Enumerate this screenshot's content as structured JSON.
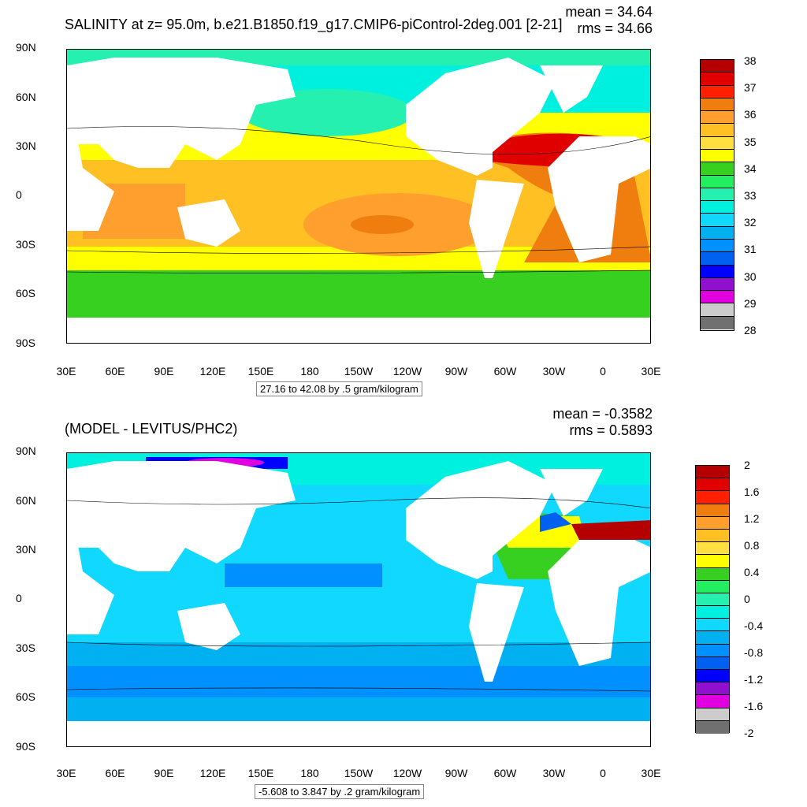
{
  "top": {
    "title": "SALINITY at z=  95.0m, b.e21.B1850.f19_g17.CMIP6-piControl-2deg.001 [2-21]",
    "mean": "mean = 34.64",
    "rms": "rms = 34.66",
    "range_text": "27.16 to 42.08 by .5 gram/kilogram",
    "colorbar_labels": [
      "38",
      "37",
      "36",
      "35",
      "34",
      "33",
      "32",
      "31",
      "30",
      "29",
      "28"
    ],
    "colorbar_colors": [
      "#b40000",
      "#e00000",
      "#ff2000",
      "#ef7e0e",
      "#ff9f2e",
      "#ffc024",
      "#ffe040",
      "#ffff00",
      "#38d020",
      "#22ee60",
      "#26f0b0",
      "#00f0e0",
      "#10d8ff",
      "#00b0f0",
      "#0090ff",
      "#0060f0",
      "#0000ff",
      "#9010d0",
      "#e000e0",
      "#cccccc",
      "#707070"
    ]
  },
  "bottom": {
    "title": "(MODEL - LEVITUS/PHC2)",
    "mean": "mean = -0.3582",
    "rms": "rms = 0.5893",
    "range_text": "-5.608 to 3.847 by .2 gram/kilogram",
    "colorbar_labels": [
      "2",
      "1.6",
      "1.2",
      "0.8",
      "0.4",
      "0",
      "-0.4",
      "-0.8",
      "-1.2",
      "-1.6",
      "-2"
    ],
    "colorbar_colors": [
      "#b40000",
      "#e00000",
      "#ff2000",
      "#ef7e0e",
      "#ff9f2e",
      "#ffc024",
      "#ffe040",
      "#ffff00",
      "#38d020",
      "#22ee60",
      "#26f0b0",
      "#00f0e0",
      "#10d8ff",
      "#00b0f0",
      "#0090ff",
      "#0060f0",
      "#0000ff",
      "#9010d0",
      "#e000e0",
      "#cccccc",
      "#707070"
    ]
  },
  "axes": {
    "lat_labels": [
      "90N",
      "60N",
      "30N",
      "0",
      "30S",
      "60S",
      "90S"
    ],
    "lon_labels": [
      "30E",
      "60E",
      "90E",
      "120E",
      "150E",
      "180",
      "150W",
      "120W",
      "90W",
      "60W",
      "30W",
      "0",
      "30E"
    ]
  },
  "map_colors": {
    "land": "#ffffff",
    "top_bands": [
      "#2ce080",
      "#ffff00",
      "#ffc024",
      "#ff9f2e",
      "#ef7e0e",
      "#e00000",
      "#00f0e0",
      "#38d020"
    ],
    "bottom_bands": [
      "#00f0e0",
      "#10d8ff",
      "#00b0f0",
      "#0090ff",
      "#26f0b0",
      "#ffff00",
      "#38d020",
      "#0000ff",
      "#e000e0",
      "#b40000"
    ]
  }
}
